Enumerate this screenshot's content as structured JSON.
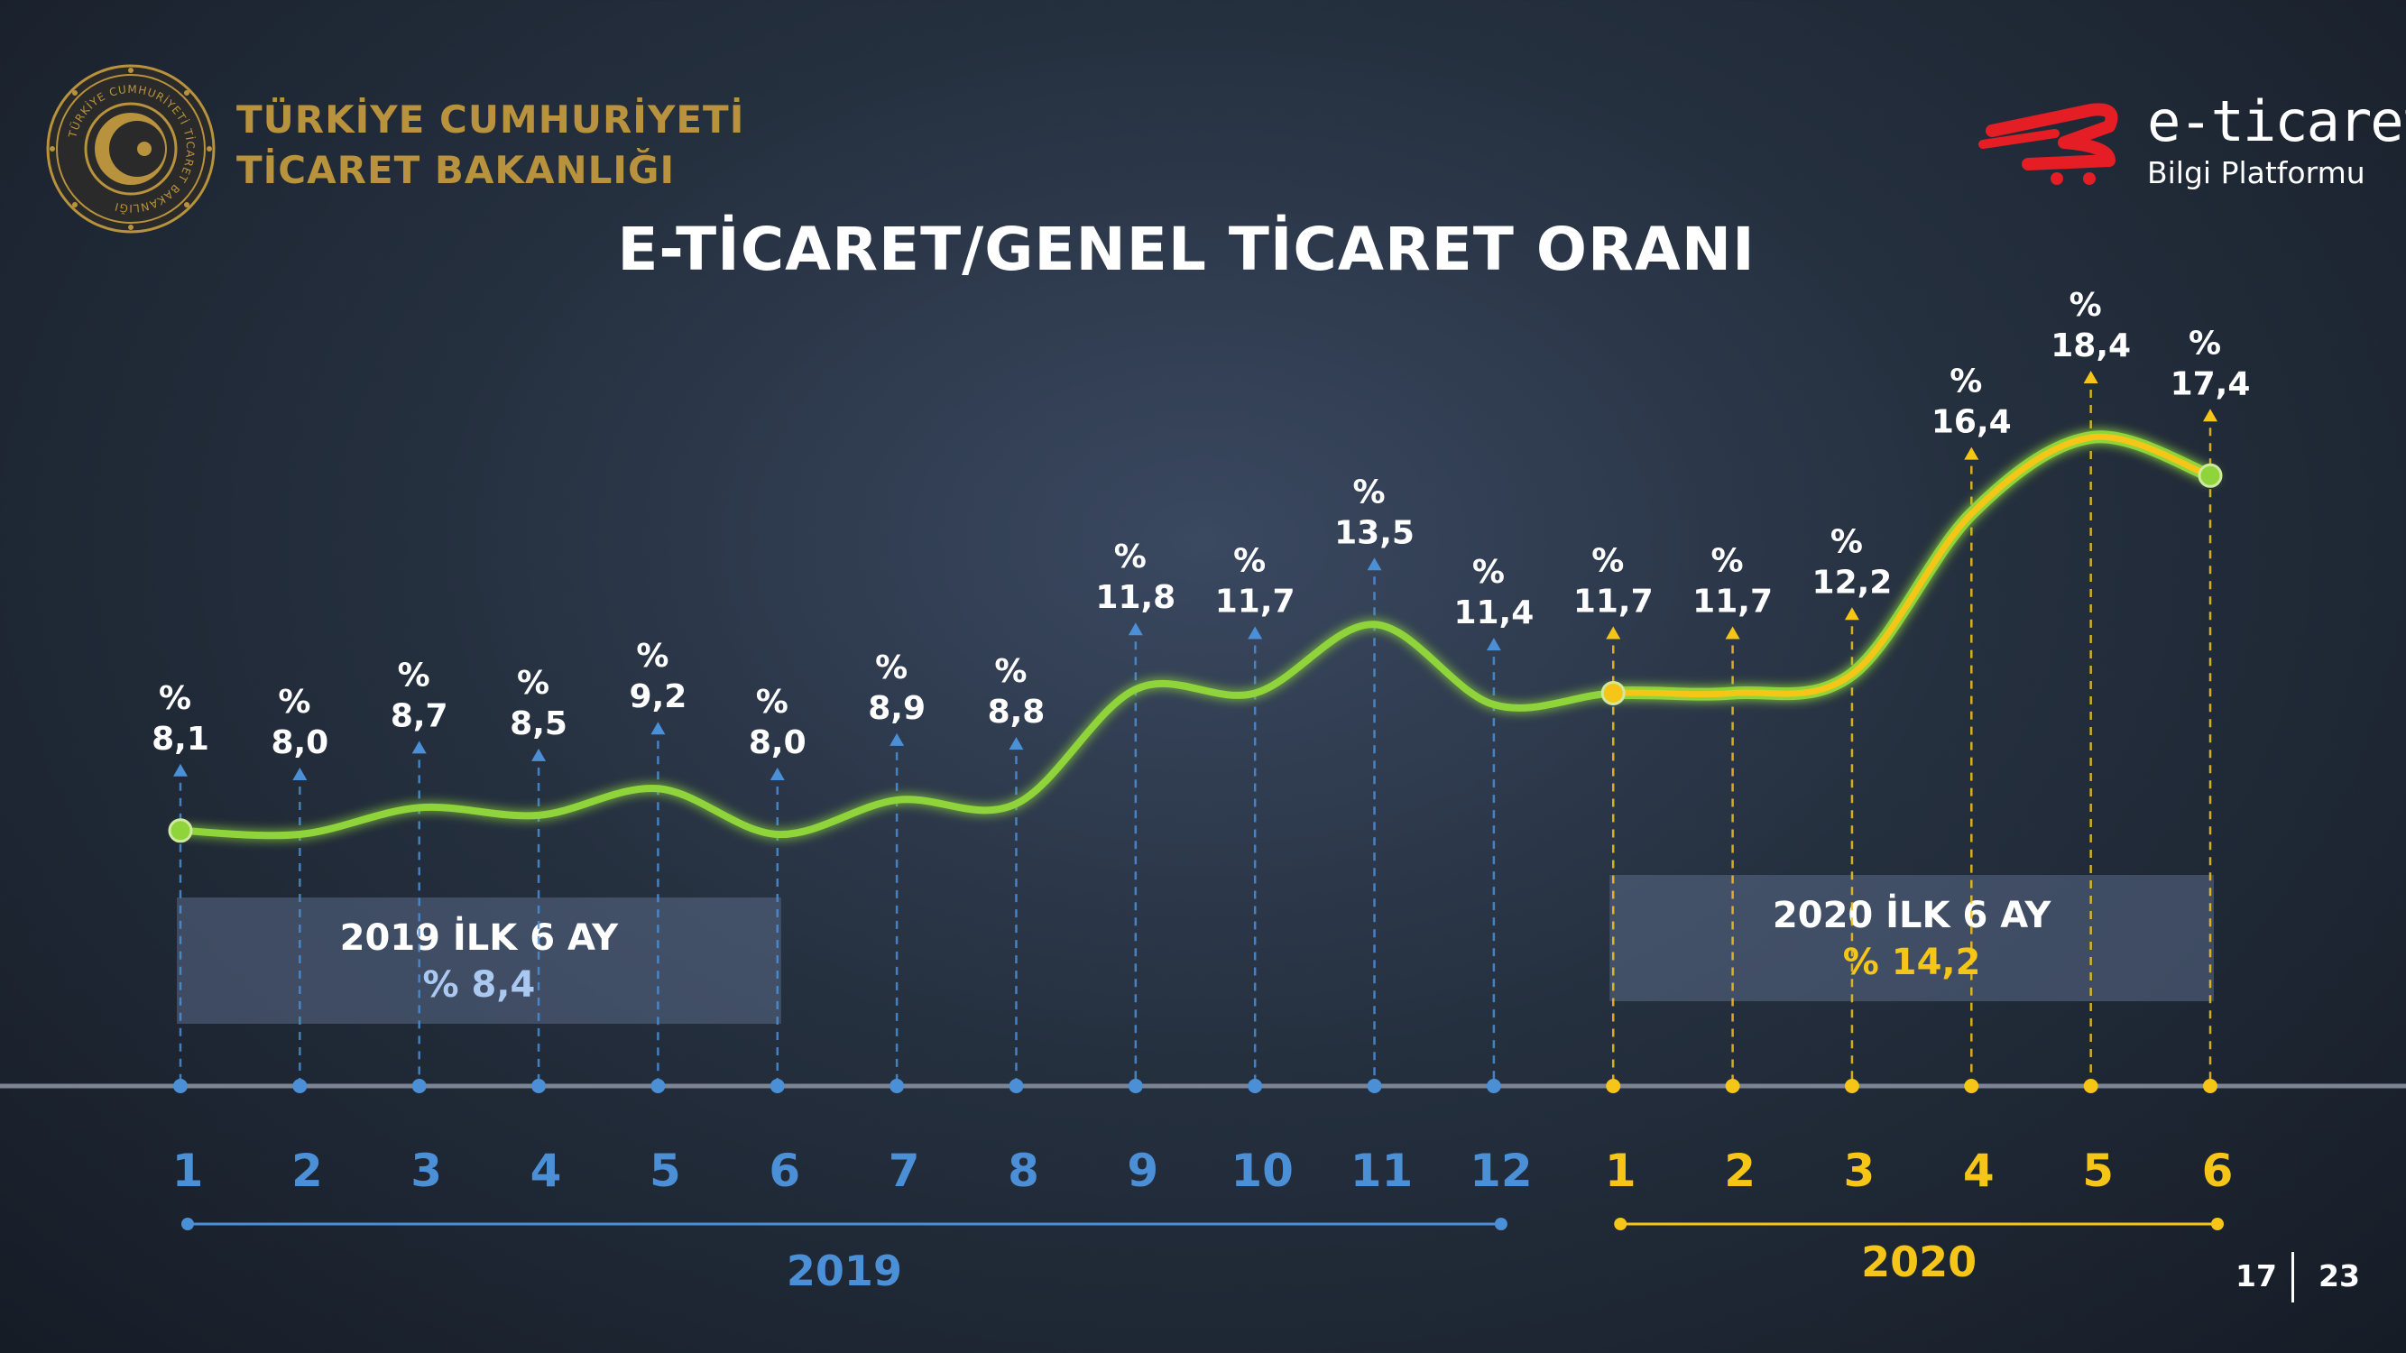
{
  "header": {
    "ministry_line1": "TÜRKİYE CUMHURİYETİ",
    "ministry_line2": "TİCARET BAKANLIĞI",
    "seal_text": "TÜRKİYE CUMHURİYETİ TİCARET BAKANLIĞI",
    "brand_name": "e-ticaret",
    "brand_sub": "Bilgi Platformu"
  },
  "colors": {
    "line_green": "#8fd43a",
    "accent_yellow": "#f5c518",
    "accent_blue": "#4b8fd6",
    "label_blue": "#aac8f0",
    "gold": "#b8923c",
    "logo_red": "#e51d24"
  },
  "chart_data": {
    "type": "line",
    "title": "E-TİCARET/GENEL TİCARET ORANI",
    "categories": [
      "1",
      "2",
      "3",
      "4",
      "5",
      "6",
      "7",
      "8",
      "9",
      "10",
      "11",
      "12",
      "1",
      "2",
      "3",
      "4",
      "5",
      "6"
    ],
    "series": [
      {
        "values": [
          8.1,
          8.0,
          8.7,
          8.5,
          9.2,
          8.0,
          8.9,
          8.8,
          11.8,
          11.7,
          13.5,
          11.4,
          11.7,
          11.7,
          12.2,
          16.4,
          18.4,
          17.4
        ]
      }
    ],
    "value_labels": [
      "8,1",
      "8,0",
      "8,7",
      "8,5",
      "9,2",
      "8,0",
      "8,9",
      "8,8",
      "11,8",
      "11,7",
      "13,5",
      "11,4",
      "11,7",
      "11,7",
      "12,2",
      "16,4",
      "18,4",
      "17,4"
    ],
    "value_prefix": "%",
    "years": [
      {
        "label": "2019",
        "start_index": 0,
        "end_index": 11
      },
      {
        "label": "2020",
        "start_index": 12,
        "end_index": 17
      }
    ],
    "summaries": [
      {
        "line1": "2019 İLK 6 AY",
        "line2": "% 8,4"
      },
      {
        "line1": "2020 İLK 6 AY",
        "line2": "% 14,2"
      }
    ]
  },
  "footer": {
    "page": "17",
    "total": "23"
  }
}
